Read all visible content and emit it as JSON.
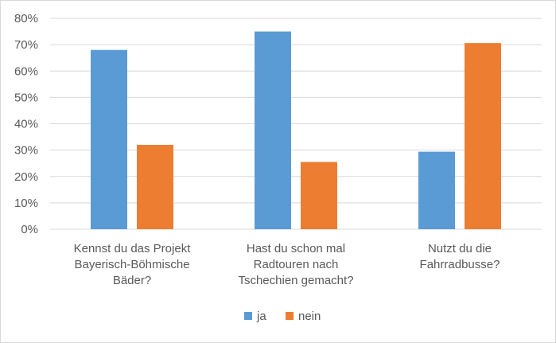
{
  "chart_data": {
    "type": "bar",
    "categories": [
      [
        "Kennst du das Projekt",
        "Bayerisch-Böhmische",
        "Bäder?"
      ],
      [
        "Hast du schon mal",
        "Radtouren nach",
        "Tschechien gemacht?"
      ],
      [
        "Nutzt du die",
        "Fahrradbusse?"
      ]
    ],
    "series": [
      {
        "name": "ja",
        "color": "#5b9bd5",
        "values": [
          0.68,
          0.75,
          0.294
        ]
      },
      {
        "name": "nein",
        "color": "#ed7d31",
        "values": [
          0.32,
          0.255,
          0.706
        ]
      }
    ],
    "ylim": [
      0,
      0.8
    ],
    "y_ticks": [
      "0%",
      "10%",
      "20%",
      "30%",
      "40%",
      "50%",
      "60%",
      "70%",
      "80%"
    ],
    "grid": true,
    "legend_position": "bottom",
    "title": "",
    "xlabel": "",
    "ylabel": ""
  }
}
